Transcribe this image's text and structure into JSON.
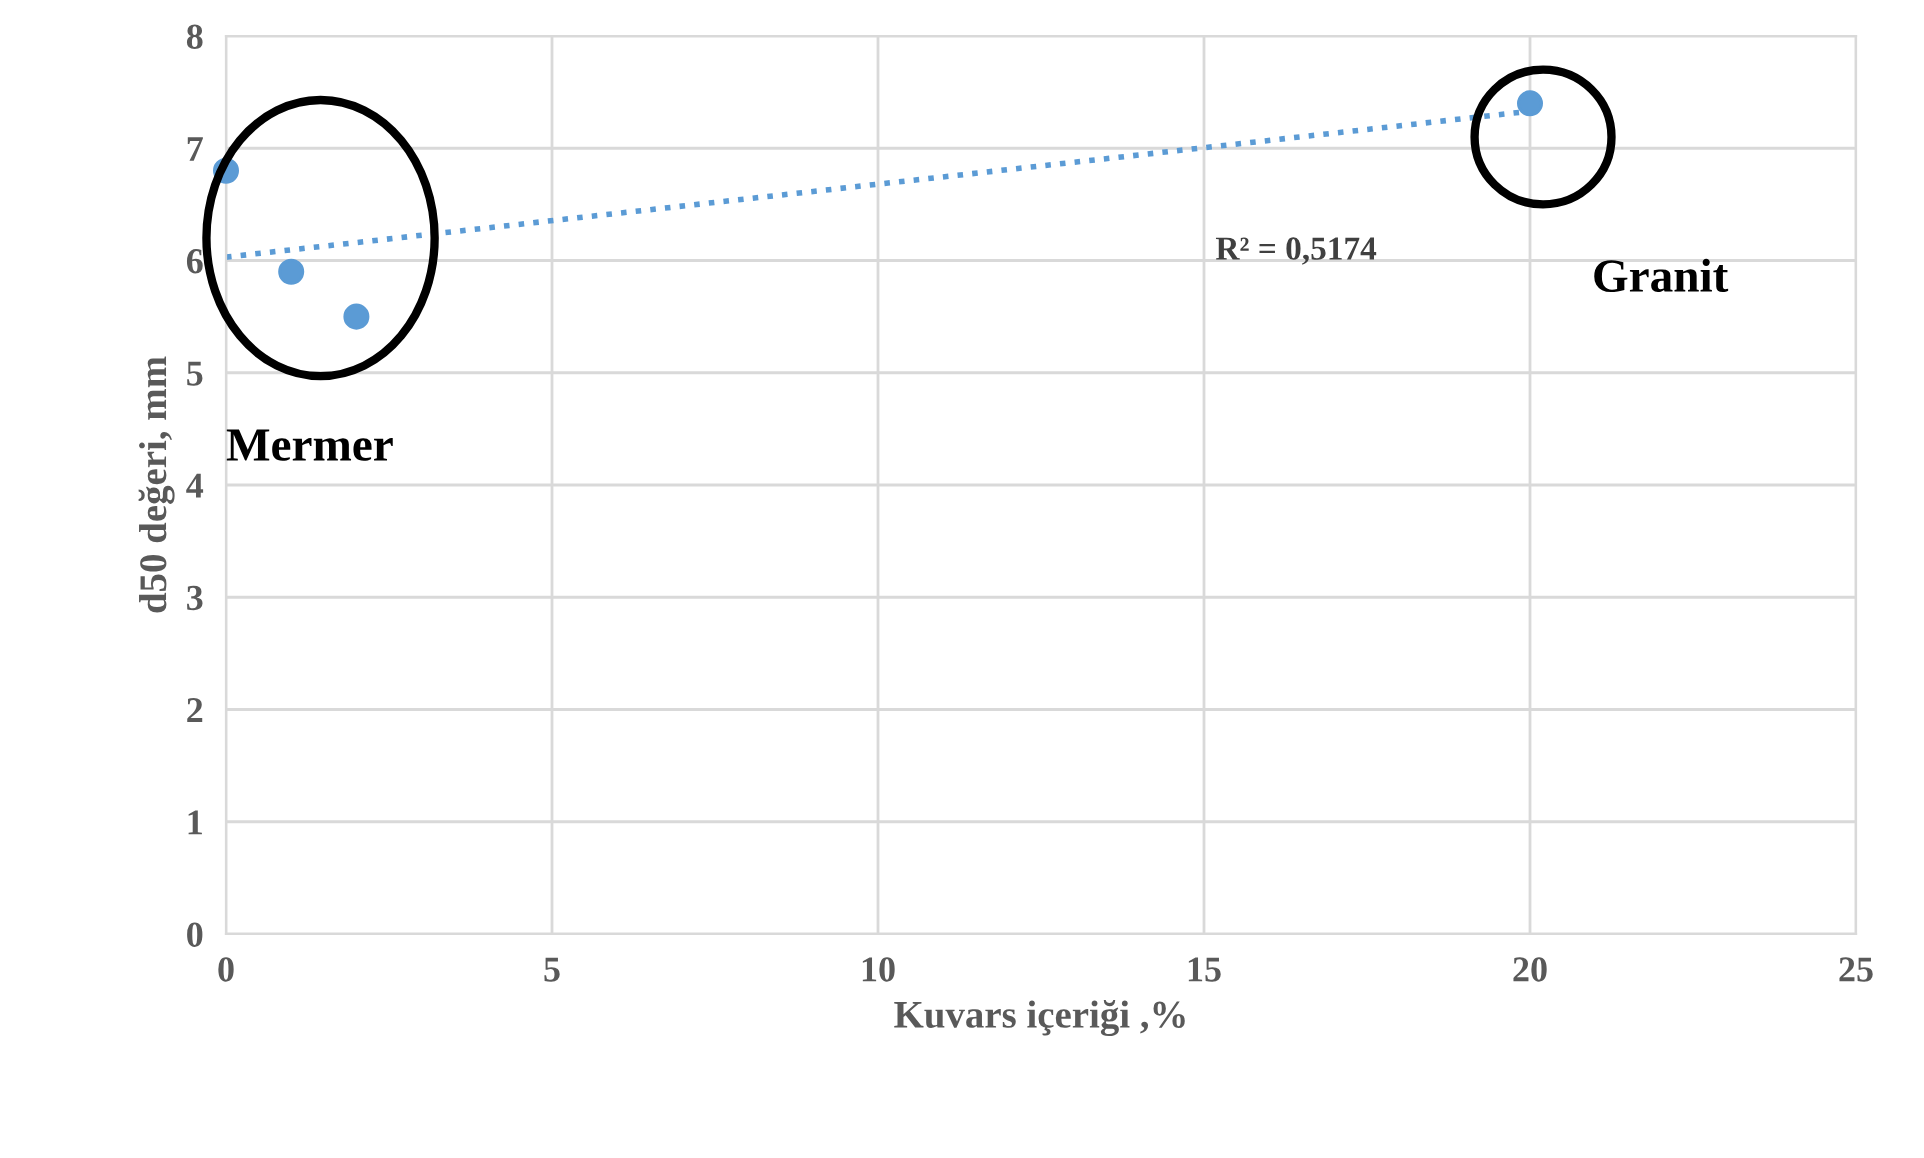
{
  "chart_data": {
    "type": "scatter",
    "xlabel": "Kuvars içeriği ,%",
    "ylabel": "d50 değeri, mm",
    "xlim": [
      0,
      25
    ],
    "xticks": [
      0,
      5,
      10,
      15,
      20,
      25
    ],
    "ylim": [
      0,
      8
    ],
    "yticks": [
      0,
      1,
      2,
      3,
      4,
      5,
      6,
      7,
      8
    ],
    "grid": true,
    "series": [
      {
        "color": "#5b9bd5",
        "marker": "circle",
        "x": [
          0,
          1,
          2,
          20
        ],
        "values": [
          6.8,
          5.9,
          5.5,
          7.4
        ]
      },
      {
        "type": "line",
        "color": "#5b9bd5",
        "line_style": "dotted",
        "x": [
          0,
          20
        ],
        "values": [
          6.03,
          7.33
        ]
      }
    ],
    "annotations": [
      "Mermer",
      "Granit",
      "R² = 0,5174"
    ]
  }
}
